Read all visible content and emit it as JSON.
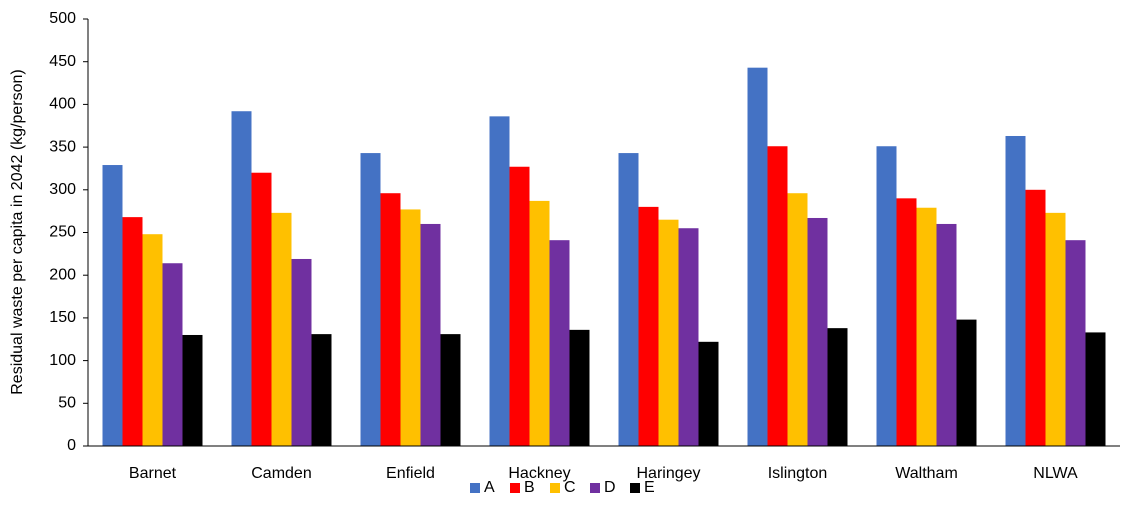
{
  "chart_data": {
    "type": "bar",
    "y_label": "Residual waste per capita in 2042 (kg/person)",
    "categories": [
      "Barnet",
      "Camden",
      "Enfield",
      "Hackney",
      "Haringey",
      "Islington",
      "Waltham",
      "NLWA"
    ],
    "series": [
      {
        "name": "A",
        "color": "#4472c4",
        "values": [
          329,
          392,
          343,
          386,
          343,
          443,
          351,
          363
        ]
      },
      {
        "name": "B",
        "color": "#ff0000",
        "values": [
          268,
          320,
          296,
          327,
          280,
          351,
          290,
          300
        ]
      },
      {
        "name": "C",
        "color": "#ffc000",
        "values": [
          248,
          273,
          277,
          287,
          265,
          296,
          279,
          273
        ]
      },
      {
        "name": "D",
        "color": "#7030a0",
        "values": [
          214,
          219,
          260,
          241,
          255,
          267,
          260,
          241
        ]
      },
      {
        "name": "E",
        "color": "#000000",
        "values": [
          130,
          131,
          131,
          136,
          122,
          138,
          148,
          133
        ]
      }
    ],
    "ylim": [
      0,
      500
    ],
    "yticks": [
      0,
      50,
      100,
      150,
      200,
      250,
      300,
      350,
      400,
      450,
      500
    ],
    "legend": "bottom"
  }
}
